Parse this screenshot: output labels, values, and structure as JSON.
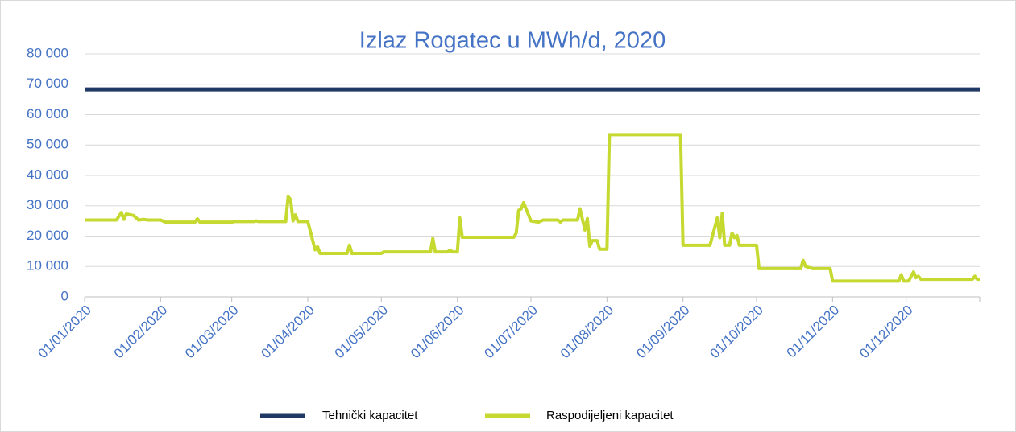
{
  "chart_data": {
    "type": "line",
    "title": "Izlaz Rogatec u MWh/d, 2020",
    "x": [
      "01/01/2020",
      "14/01/2020",
      "16/01/2020",
      "17/01/2020",
      "18/01/2020",
      "21/01/2020",
      "23/01/2020",
      "25/01/2020",
      "27/01/2020",
      "01/02/2020",
      "03/02/2020",
      "15/02/2020",
      "16/02/2020",
      "17/02/2020",
      "01/03/2020",
      "02/03/2020",
      "10/03/2020",
      "11/03/2020",
      "12/03/2020",
      "23/03/2020",
      "24/03/2020",
      "25/03/2020",
      "26/03/2020",
      "27/03/2020",
      "28/03/2020",
      "01/04/2020",
      "04/04/2020",
      "05/04/2020",
      "06/04/2020",
      "17/04/2020",
      "18/04/2020",
      "19/04/2020",
      "01/05/2020",
      "02/05/2020",
      "21/05/2020",
      "22/05/2020",
      "23/05/2020",
      "28/05/2020",
      "29/05/2020",
      "30/05/2020",
      "01/06/2020",
      "02/06/2020",
      "03/06/2020",
      "24/06/2020",
      "25/06/2020",
      "26/06/2020",
      "27/06/2020",
      "28/06/2020",
      "29/06/2020",
      "01/07/2020",
      "04/07/2020",
      "06/07/2020",
      "12/07/2020",
      "13/07/2020",
      "14/07/2020",
      "20/07/2020",
      "21/07/2020",
      "22/07/2020",
      "23/07/2020",
      "24/07/2020",
      "25/07/2020",
      "26/07/2020",
      "28/07/2020",
      "29/07/2020",
      "01/08/2020",
      "02/08/2020",
      "31/08/2020",
      "01/09/2020",
      "12/09/2020",
      "15/09/2020",
      "16/09/2020",
      "17/09/2020",
      "18/09/2020",
      "20/09/2020",
      "21/09/2020",
      "22/09/2020",
      "23/09/2020",
      "24/09/2020",
      "01/10/2020",
      "02/10/2020",
      "19/10/2020",
      "20/10/2020",
      "21/10/2020",
      "24/10/2020",
      "31/10/2020",
      "01/11/2020",
      "28/11/2020",
      "29/11/2020",
      "30/11/2020",
      "02/12/2020",
      "04/12/2020",
      "05/12/2020",
      "06/12/2020",
      "07/12/2020",
      "28/12/2020",
      "29/12/2020",
      "30/12/2020",
      "31/12/2020"
    ],
    "series": [
      {
        "name": "Tehnički kapacitet",
        "color": "#203864",
        "values": [
          68300,
          68300,
          68300,
          68300,
          68300,
          68300,
          68300,
          68300,
          68300,
          68300,
          68300,
          68300,
          68300,
          68300,
          68300,
          68300,
          68300,
          68300,
          68300,
          68300,
          68300,
          68300,
          68300,
          68300,
          68300,
          68300,
          68300,
          68300,
          68300,
          68300,
          68300,
          68300,
          68300,
          68300,
          68300,
          68300,
          68300,
          68300,
          68300,
          68300,
          68300,
          68300,
          68300,
          68300,
          68300,
          68300,
          68300,
          68300,
          68300,
          68300,
          68300,
          68300,
          68300,
          68300,
          68300,
          68300,
          68300,
          68300,
          68300,
          68300,
          68300,
          68300,
          68300,
          68300,
          68300,
          68300,
          68300,
          68300,
          68300,
          68300,
          68300,
          68300,
          68300,
          68300,
          68300,
          68300,
          68300,
          68300,
          68300,
          68300,
          68300,
          68300,
          68300,
          68300,
          68300,
          68300,
          68300,
          68300,
          68300,
          68300,
          68300,
          68300,
          68300,
          68300,
          68300,
          68300,
          68300,
          68300
        ]
      },
      {
        "name": "Raspodijeljeni kapacitet",
        "color": "#c5d930",
        "values": [
          25300,
          25300,
          27800,
          25500,
          27300,
          26800,
          25300,
          25500,
          25300,
          25300,
          24600,
          24600,
          25700,
          24600,
          24600,
          24800,
          24800,
          25000,
          24800,
          24800,
          33000,
          32000,
          25000,
          27000,
          24800,
          24800,
          15500,
          16500,
          14300,
          14300,
          17000,
          14300,
          14300,
          14800,
          14800,
          19200,
          14800,
          14800,
          15400,
          14800,
          14800,
          26000,
          19600,
          19600,
          21000,
          28500,
          29000,
          31000,
          29000,
          25000,
          24600,
          25300,
          25300,
          24600,
          25300,
          25300,
          29000,
          25500,
          22000,
          25800,
          16700,
          18500,
          18500,
          15700,
          15700,
          53400,
          53400,
          17000,
          17000,
          26000,
          19500,
          27500,
          17000,
          17000,
          21000,
          19500,
          20200,
          17000,
          17000,
          9300,
          9300,
          12000,
          10000,
          9300,
          9300,
          5200,
          5200,
          7300,
          5200,
          5200,
          8200,
          6300,
          6800,
          5800,
          5800,
          6800,
          5800,
          5800
        ]
      }
    ],
    "xlim": [
      "01/01/2020",
      "31/12/2020"
    ],
    "xticks": [
      "01/01/2020",
      "01/02/2020",
      "01/03/2020",
      "01/04/2020",
      "01/05/2020",
      "01/06/2020",
      "01/07/2020",
      "01/08/2020",
      "01/09/2020",
      "01/10/2020",
      "01/11/2020",
      "01/12/2020"
    ],
    "ylim": [
      0,
      80000
    ],
    "yticks": [
      0,
      {
        "value": 10000,
        "label": "10 000"
      },
      {
        "value": 20000,
        "label": "20 000"
      },
      {
        "value": 30000,
        "label": "30 000"
      },
      {
        "value": 40000,
        "label": "40 000"
      },
      {
        "value": 50000,
        "label": "50 000"
      },
      {
        "value": 60000,
        "label": "60 000"
      },
      {
        "value": 70000,
        "label": "70 000"
      },
      {
        "value": 80000,
        "label": "80 000"
      }
    ],
    "grid": true,
    "legend": "bottom"
  }
}
